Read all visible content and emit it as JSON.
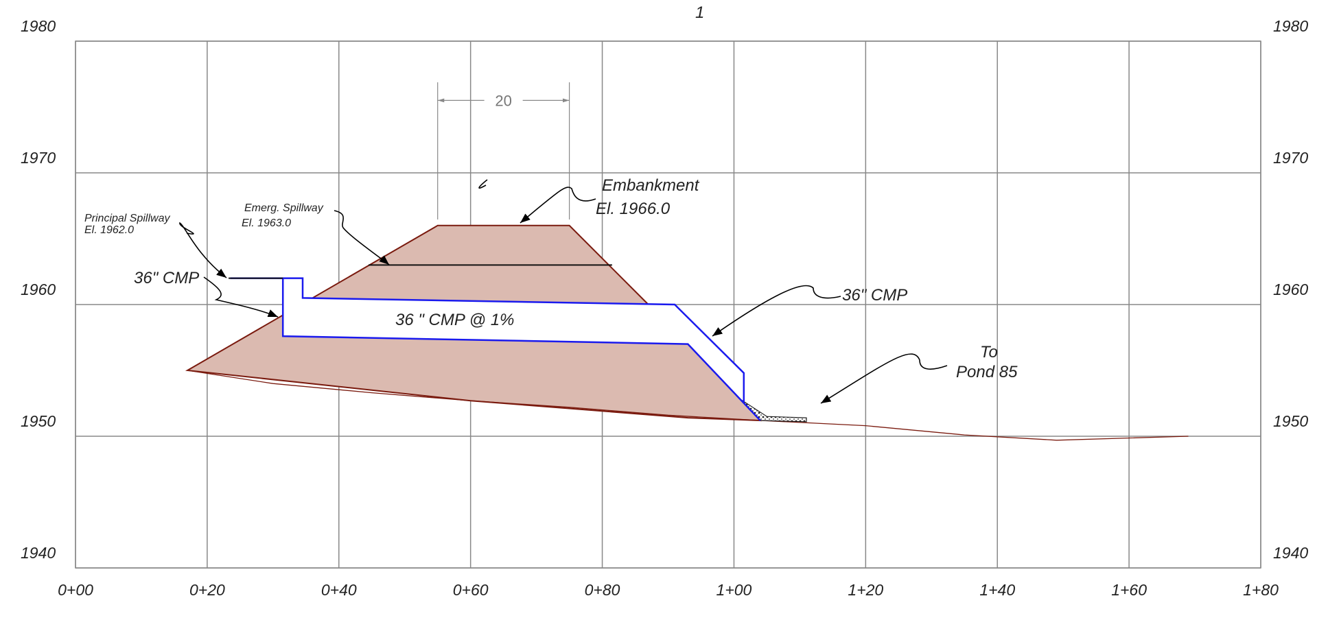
{
  "chart_data": {
    "type": "diagram",
    "x_axis": {
      "ticks": [
        "0+00",
        "0+20",
        "0+40",
        "0+60",
        "0+80",
        "1+00",
        "1+20",
        "1+40",
        "1+60",
        "1+80"
      ],
      "range": [
        0,
        180
      ]
    },
    "y_axis": {
      "ticks": [
        "1940",
        "1950",
        "1960",
        "1970",
        "1980"
      ],
      "range": [
        1940,
        1980
      ]
    },
    "grid": true,
    "ground_profile": [
      [
        17,
        1955
      ],
      [
        30,
        1954
      ],
      [
        45,
        1953.3
      ],
      [
        60,
        1952.7
      ],
      [
        75,
        1952.2
      ],
      [
        90,
        1951.6
      ],
      [
        104,
        1951.2
      ],
      [
        120,
        1950.8
      ],
      [
        135,
        1950.1
      ],
      [
        149,
        1949.7
      ],
      [
        169,
        1950.0
      ]
    ],
    "embankment": [
      [
        17,
        1955
      ],
      [
        55,
        1966
      ],
      [
        75,
        1966
      ],
      [
        87,
        1960
      ],
      [
        93,
        1957
      ],
      [
        104,
        1951.2
      ],
      [
        93,
        1951.4
      ],
      [
        60,
        1952.7
      ],
      [
        17,
        1955
      ]
    ],
    "emergency_spillway_line": [
      [
        44.5,
        1963.0
      ],
      [
        81.5,
        1963.0
      ]
    ],
    "cmp_top": [
      [
        23.5,
        1962.0
      ],
      [
        34.5,
        1962.0
      ],
      [
        34.5,
        1960.5
      ],
      [
        91,
        1960.0
      ],
      [
        101.5,
        1954.8
      ],
      [
        101.5,
        1952.6
      ]
    ],
    "cmp_bottom": [
      [
        31.5,
        1962.0
      ],
      [
        31.5,
        1957.6
      ],
      [
        93,
        1957.0
      ],
      [
        104,
        1951.2
      ]
    ],
    "riprap": [
      [
        101,
        1952.8
      ],
      [
        104,
        1951.2
      ],
      [
        111,
        1951.1
      ],
      [
        111,
        1951.4
      ],
      [
        105,
        1951.5
      ]
    ],
    "dimension": {
      "from": 55,
      "to": 75,
      "label": "20",
      "elevation": 1975.5
    },
    "colors": {
      "grid": "#888888",
      "embankment_fill": "#dbbab0",
      "embankment_line": "#7a1a0e",
      "pipe": "#1a1aee",
      "leader": "#000000",
      "dimension": "#888888"
    }
  },
  "annotations": {
    "embankment_l1": "Embankment",
    "embankment_l2": "El. 1966.0",
    "principal_l1": "Principal Spillway",
    "principal_l2": "El. 1962.0",
    "emerg_l1": "Emerg. Spillway",
    "emerg_l2": "El. 1963.0",
    "cmp_left": "36\" CMP",
    "cmp_right": "36\" CMP",
    "cmp_slope": "36 \" CMP @ 1%",
    "to_l1": "To",
    "to_l2": "Pond 85",
    "title_fragment": "1"
  }
}
